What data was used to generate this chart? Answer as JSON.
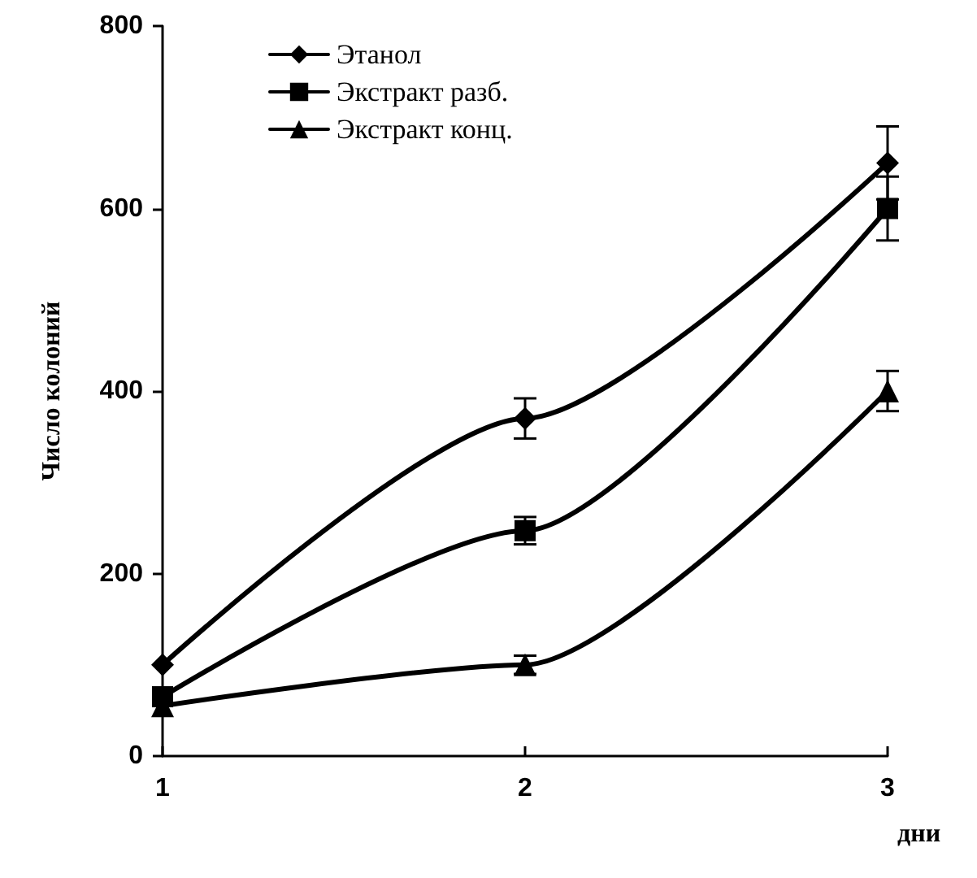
{
  "chart_data": {
    "type": "line",
    "xlabel": "дни",
    "ylabel": "Число колоний",
    "x": [
      1,
      2,
      3
    ],
    "xlim": [
      1,
      3
    ],
    "xticks": [
      1,
      2,
      3
    ],
    "ylim": [
      0,
      800
    ],
    "yticks": [
      0,
      200,
      400,
      600,
      800
    ],
    "grid": false,
    "legend": "top left",
    "line_style": "solid",
    "series": [
      {
        "name": "Этанол",
        "color": "#000000",
        "marker": "diamond",
        "values": [
          100,
          370,
          650
        ],
        "errors": [
          null,
          22,
          40
        ]
      },
      {
        "name": "Экстракт разб.",
        "color": "#000000",
        "marker": "square",
        "values": [
          65,
          247,
          600
        ],
        "errors": [
          null,
          15,
          35
        ]
      },
      {
        "name": "Экстракт конц.",
        "color": "#000000",
        "marker": "triangle",
        "values": [
          55,
          100,
          400
        ],
        "errors": [
          null,
          10,
          22
        ]
      }
    ]
  }
}
